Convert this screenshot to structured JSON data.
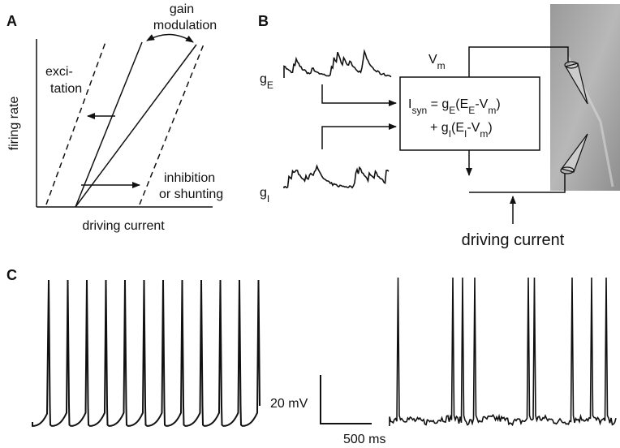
{
  "panels": {
    "a": "A",
    "b": "B",
    "c": "C"
  },
  "panel_a": {
    "y_label": "firing rate",
    "x_label": "driving current",
    "excitation": [
      "exci-",
      "tation"
    ],
    "gain": [
      "gain",
      "modulation"
    ],
    "inhibition": [
      "inhibition",
      "or shunting"
    ]
  },
  "panel_b": {
    "vm": [
      "V",
      "m"
    ],
    "ge": [
      "g",
      "E"
    ],
    "gi": [
      "g",
      "I"
    ],
    "equation_line1": [
      "I",
      "syn",
      " = g",
      "E",
      "(E",
      "E",
      "-V",
      "m",
      ")"
    ],
    "equation_line2": [
      "+ g",
      "I",
      "(E",
      "I",
      "-V",
      "m",
      ")"
    ],
    "driving": "driving current"
  },
  "panel_c": {
    "scale_v": "20 mV",
    "scale_t": "500 ms"
  }
}
